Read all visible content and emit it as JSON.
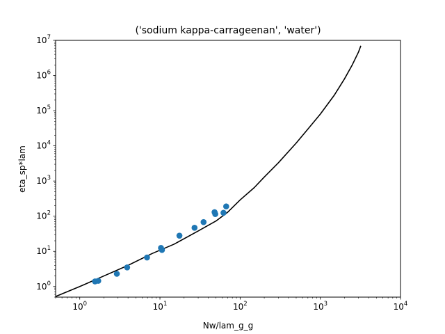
{
  "chart_data": {
    "type": "scatter",
    "title": "('sodium kappa-carrageenan', 'water')",
    "xlabel": "Nw/lam_g_g",
    "ylabel": "eta_sp*lam",
    "xscale": "log",
    "yscale": "log",
    "xlim": [
      0.5,
      10000
    ],
    "ylim": [
      0.5,
      10000000
    ],
    "x_ticks": [
      {
        "value": 1,
        "base": "10",
        "exp": "0"
      },
      {
        "value": 10,
        "base": "10",
        "exp": "1"
      },
      {
        "value": 100,
        "base": "10",
        "exp": "2"
      },
      {
        "value": 1000,
        "base": "10",
        "exp": "3"
      },
      {
        "value": 10000,
        "base": "10",
        "exp": "4"
      }
    ],
    "y_ticks": [
      {
        "value": 1,
        "base": "10",
        "exp": "0"
      },
      {
        "value": 10,
        "base": "10",
        "exp": "1"
      },
      {
        "value": 100,
        "base": "10",
        "exp": "2"
      },
      {
        "value": 1000,
        "base": "10",
        "exp": "3"
      },
      {
        "value": 10000,
        "base": "10",
        "exp": "4"
      },
      {
        "value": 100000,
        "base": "10",
        "exp": "5"
      },
      {
        "value": 1000000,
        "base": "10",
        "exp": "6"
      },
      {
        "value": 10000000,
        "base": "10",
        "exp": "7"
      }
    ],
    "grid": false,
    "legend": "none",
    "series": [
      {
        "kind": "scatter",
        "color": "#1f77b4",
        "points": [
          [
            1.55,
            1.4
          ],
          [
            1.7,
            1.45
          ],
          [
            2.9,
            2.3
          ],
          [
            3.9,
            3.5
          ],
          [
            6.9,
            6.7
          ],
          [
            10.3,
            12.5
          ],
          [
            10.6,
            11.0
          ],
          [
            17.5,
            28
          ],
          [
            27,
            47
          ],
          [
            35,
            68
          ],
          [
            48,
            130
          ],
          [
            49,
            115
          ],
          [
            62,
            125
          ],
          [
            67,
            190
          ]
        ]
      },
      {
        "kind": "line",
        "color": "#000000",
        "points": [
          [
            0.5,
            0.52
          ],
          [
            1,
            1.0
          ],
          [
            2,
            2.0
          ],
          [
            4,
            4.0
          ],
          [
            8,
            8.7
          ],
          [
            15,
            16
          ],
          [
            30,
            38
          ],
          [
            50,
            73
          ],
          [
            70,
            130
          ],
          [
            100,
            290
          ],
          [
            150,
            650
          ],
          [
            200,
            1300
          ],
          [
            300,
            3300
          ],
          [
            500,
            12000
          ],
          [
            700,
            30000
          ],
          [
            1000,
            80000
          ],
          [
            1500,
            280000
          ],
          [
            2000,
            800000
          ],
          [
            2500,
            2000000
          ],
          [
            3000,
            4700000
          ],
          [
            3200,
            7000000
          ]
        ]
      }
    ]
  }
}
